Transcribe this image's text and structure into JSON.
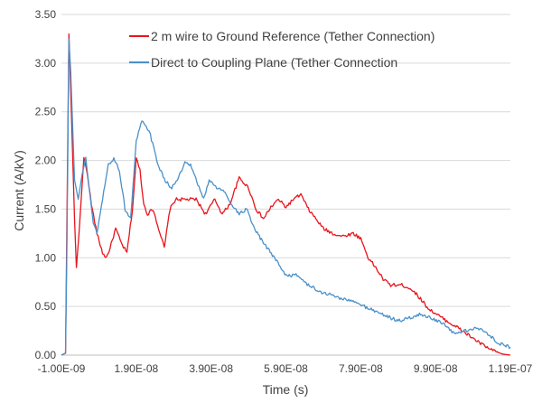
{
  "chart_data": {
    "type": "line",
    "title": "",
    "xlabel": "Time (s)",
    "ylabel": "Current (A/kV)",
    "xlim": [
      -1e-09,
      1.19e-07
    ],
    "ylim": [
      0,
      3.5
    ],
    "x_ticks": [
      {
        "value": -1e-09,
        "label": "-1.00E-09"
      },
      {
        "value": 1.9e-08,
        "label": "1.90E-08"
      },
      {
        "value": 3.9e-08,
        "label": "3.90E-08"
      },
      {
        "value": 5.9e-08,
        "label": "5.90E-08"
      },
      {
        "value": 7.9e-08,
        "label": "7.90E-08"
      },
      {
        "value": 9.9e-08,
        "label": "9.90E-08"
      },
      {
        "value": 1.19e-07,
        "label": "1.19E-07"
      }
    ],
    "y_ticks": [
      {
        "value": 0,
        "label": "0.00"
      },
      {
        "value": 0.5,
        "label": "0.50"
      },
      {
        "value": 1.0,
        "label": "1.00"
      },
      {
        "value": 1.5,
        "label": "1.50"
      },
      {
        "value": 2.0,
        "label": "2.00"
      },
      {
        "value": 2.5,
        "label": "2.50"
      },
      {
        "value": 3.0,
        "label": "3.00"
      },
      {
        "value": 3.5,
        "label": "3.50"
      }
    ],
    "grid": true,
    "legend_position": "top-right",
    "series": [
      {
        "name": "2 m wire to Ground Reference (Tether Connection)",
        "color": "#e8141c",
        "points": [
          [
            -1e-09,
            0.0
          ],
          [
            1e-10,
            0.02
          ],
          [
            5e-10,
            1.5
          ],
          [
            1e-09,
            3.3
          ],
          [
            1.5e-09,
            2.7
          ],
          [
            2.5e-09,
            1.4
          ],
          [
            3e-09,
            0.9
          ],
          [
            3.7e-09,
            1.25
          ],
          [
            5e-09,
            2.03
          ],
          [
            6e-09,
            1.85
          ],
          [
            7e-09,
            1.55
          ],
          [
            8.5e-09,
            1.25
          ],
          [
            1e-08,
            1.05
          ],
          [
            1.1e-08,
            1.0
          ],
          [
            1.2e-08,
            1.1
          ],
          [
            1.35e-08,
            1.3
          ],
          [
            1.5e-08,
            1.15
          ],
          [
            1.65e-08,
            1.05
          ],
          [
            1.8e-08,
            1.5
          ],
          [
            1.9e-08,
            2.02
          ],
          [
            2e-08,
            1.9
          ],
          [
            2.1e-08,
            1.55
          ],
          [
            2.2e-08,
            1.45
          ],
          [
            2.35e-08,
            1.5
          ],
          [
            2.5e-08,
            1.3
          ],
          [
            2.65e-08,
            1.1
          ],
          [
            2.8e-08,
            1.5
          ],
          [
            2.95e-08,
            1.6
          ],
          [
            3.2e-08,
            1.6
          ],
          [
            3.5e-08,
            1.6
          ],
          [
            3.75e-08,
            1.45
          ],
          [
            4e-08,
            1.6
          ],
          [
            4.2e-08,
            1.45
          ],
          [
            4.4e-08,
            1.55
          ],
          [
            4.65e-08,
            1.82
          ],
          [
            4.9e-08,
            1.72
          ],
          [
            5.1e-08,
            1.5
          ],
          [
            5.3e-08,
            1.4
          ],
          [
            5.5e-08,
            1.52
          ],
          [
            5.7e-08,
            1.6
          ],
          [
            5.9e-08,
            1.52
          ],
          [
            6.1e-08,
            1.6
          ],
          [
            6.3e-08,
            1.65
          ],
          [
            6.5e-08,
            1.5
          ],
          [
            6.7e-08,
            1.4
          ],
          [
            6.9e-08,
            1.3
          ],
          [
            7.15e-08,
            1.25
          ],
          [
            7.4e-08,
            1.22
          ],
          [
            7.7e-08,
            1.25
          ],
          [
            7.9e-08,
            1.2
          ],
          [
            8.1e-08,
            1.0
          ],
          [
            8.3e-08,
            0.9
          ],
          [
            8.5e-08,
            0.78
          ],
          [
            8.7e-08,
            0.72
          ],
          [
            9e-08,
            0.72
          ],
          [
            9.25e-08,
            0.68
          ],
          [
            9.5e-08,
            0.58
          ],
          [
            9.7e-08,
            0.48
          ],
          [
            1e-07,
            0.4
          ],
          [
            1.02e-07,
            0.35
          ],
          [
            1.05e-07,
            0.28
          ],
          [
            1.08e-07,
            0.2
          ],
          [
            1.11e-07,
            0.12
          ],
          [
            1.14e-07,
            0.05
          ],
          [
            1.17e-07,
            0.01
          ],
          [
            1.19e-07,
            0.0
          ]
        ]
      },
      {
        "name": "Direct to Coupling Plane (Tether Connection",
        "color": "#4a90c8",
        "points": [
          [
            -1e-09,
            0.0
          ],
          [
            1e-10,
            0.02
          ],
          [
            5e-10,
            1.2
          ],
          [
            1e-09,
            3.25
          ],
          [
            1.5e-09,
            2.9
          ],
          [
            2.5e-09,
            1.8
          ],
          [
            3.5e-09,
            1.6
          ],
          [
            4.5e-09,
            1.85
          ],
          [
            5.5e-09,
            2.02
          ],
          [
            6.5e-09,
            1.7
          ],
          [
            7.5e-09,
            1.35
          ],
          [
            8.5e-09,
            1.25
          ],
          [
            1e-08,
            1.6
          ],
          [
            1.15e-08,
            1.95
          ],
          [
            1.3e-08,
            2.02
          ],
          [
            1.45e-08,
            1.9
          ],
          [
            1.6e-08,
            1.5
          ],
          [
            1.75e-08,
            1.4
          ],
          [
            1.9e-08,
            2.2
          ],
          [
            2.05e-08,
            2.4
          ],
          [
            2.25e-08,
            2.3
          ],
          [
            2.45e-08,
            2.0
          ],
          [
            2.65e-08,
            1.8
          ],
          [
            2.85e-08,
            1.72
          ],
          [
            3e-08,
            1.8
          ],
          [
            3.2e-08,
            1.97
          ],
          [
            3.35e-08,
            1.95
          ],
          [
            3.55e-08,
            1.75
          ],
          [
            3.7e-08,
            1.6
          ],
          [
            3.85e-08,
            1.8
          ],
          [
            4.05e-08,
            1.72
          ],
          [
            4.25e-08,
            1.68
          ],
          [
            4.45e-08,
            1.55
          ],
          [
            4.65e-08,
            1.45
          ],
          [
            4.85e-08,
            1.5
          ],
          [
            5.05e-08,
            1.3
          ],
          [
            5.3e-08,
            1.15
          ],
          [
            5.6e-08,
            1.0
          ],
          [
            5.9e-08,
            0.82
          ],
          [
            6.2e-08,
            0.82
          ],
          [
            6.5e-08,
            0.72
          ],
          [
            6.8e-08,
            0.65
          ],
          [
            7.1e-08,
            0.62
          ],
          [
            7.4e-08,
            0.58
          ],
          [
            7.7e-08,
            0.55
          ],
          [
            8e-08,
            0.5
          ],
          [
            8.3e-08,
            0.45
          ],
          [
            8.6e-08,
            0.4
          ],
          [
            8.9e-08,
            0.35
          ],
          [
            9.2e-08,
            0.38
          ],
          [
            9.5e-08,
            0.42
          ],
          [
            9.8e-08,
            0.38
          ],
          [
            1.01e-07,
            0.32
          ],
          [
            1.04e-07,
            0.22
          ],
          [
            1.07e-07,
            0.25
          ],
          [
            1.1e-07,
            0.28
          ],
          [
            1.13e-07,
            0.22
          ],
          [
            1.16e-07,
            0.12
          ],
          [
            1.19e-07,
            0.08
          ]
        ]
      }
    ]
  }
}
